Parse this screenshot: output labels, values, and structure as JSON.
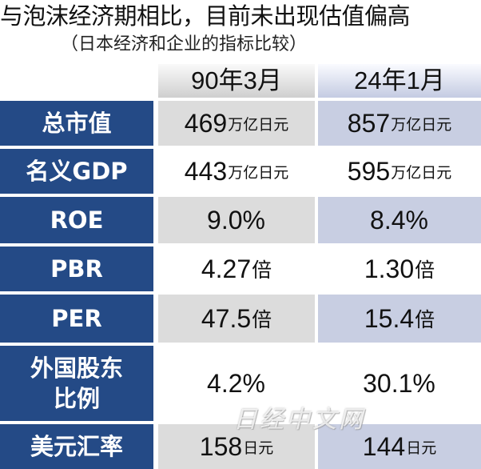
{
  "title": "与泡沫经济期相比，目前未出现估值偏高",
  "subtitle": "（日本经济和企业的指标比较）",
  "columns": [
    "90年3月",
    "24年1月"
  ],
  "rows": [
    {
      "label": "总市值",
      "v1": "469",
      "u1": "万亿日元",
      "v2": "857",
      "u2": "万亿日元"
    },
    {
      "label": "名义GDP",
      "v1": "443",
      "u1": "万亿日元",
      "v2": "595",
      "u2": "万亿日元"
    },
    {
      "label": "ROE",
      "v1": "9.0%",
      "u1": "",
      "v2": "8.4%",
      "u2": ""
    },
    {
      "label": "PBR",
      "v1": "4.27",
      "u1": "倍",
      "v2": "1.30",
      "u2": "倍"
    },
    {
      "label": "PER",
      "v1": "47.5",
      "u1": "倍",
      "v2": "15.4",
      "u2": "倍"
    },
    {
      "label": "外国股东\n比例",
      "v1": "4.2%",
      "u1": "",
      "v2": "30.1%",
      "u2": ""
    },
    {
      "label": "美元汇率",
      "v1": "158",
      "u1": "日元",
      "v2": "144",
      "u2": "日元"
    }
  ],
  "watermark": "日经中文网"
}
